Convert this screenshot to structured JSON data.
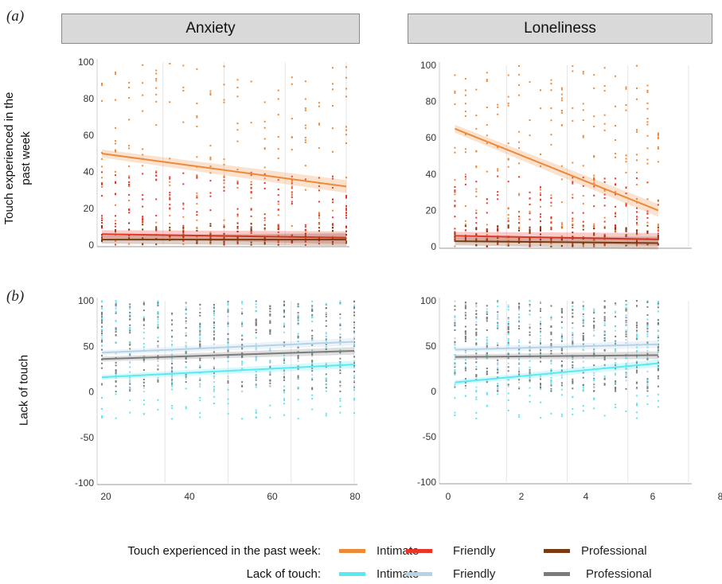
{
  "panel_labels": {
    "a": "(a)",
    "b": "(b)"
  },
  "headers": {
    "left": "Anxiety",
    "right": "Loneliness"
  },
  "y_labels": {
    "row_a_line1": "Touch experienced in the",
    "row_a_line2": "past week",
    "row_b": "Lack of touch"
  },
  "legend": {
    "row1_title": "Touch experienced in the past week:",
    "row2_title": "Lack of touch:",
    "row1_items": [
      {
        "label": "Intimate",
        "color": "#ed8a3a"
      },
      {
        "label": "Friendly",
        "color": "#e8352a"
      },
      {
        "label": "Professional",
        "color": "#7a3a12"
      }
    ],
    "row2_items": [
      {
        "label": "Intimate",
        "color": "#5ce8f2"
      },
      {
        "label": "Friendly",
        "color": "#b5d3e6"
      },
      {
        "label": "Professional",
        "color": "#7b7b7b"
      }
    ]
  },
  "chart_data": [
    {
      "type": "scatter",
      "panel": "(a) Anxiety",
      "xlim": [
        20,
        80
      ],
      "ylim": [
        0,
        100
      ],
      "yticks": [
        0,
        20,
        40,
        60,
        80,
        100
      ],
      "x_tick_labels": [],
      "series": [
        {
          "name": "Intimate",
          "color": "#ed8a3a",
          "fit": {
            "x": [
              20,
              80
            ],
            "y": [
              50,
              32
            ]
          }
        },
        {
          "name": "Friendly",
          "color": "#e8352a",
          "fit": {
            "x": [
              20,
              80
            ],
            "y": [
              6,
              4
            ]
          }
        },
        {
          "name": "Professional",
          "color": "#7a3a12",
          "fit": {
            "x": [
              20,
              80
            ],
            "y": [
              3,
              3
            ]
          }
        }
      ]
    },
    {
      "type": "scatter",
      "panel": "(a) Loneliness",
      "xlim": [
        0,
        8
      ],
      "ylim": [
        0,
        100
      ],
      "yticks": [
        0,
        20,
        40,
        60,
        80,
        100
      ],
      "x_tick_labels": [],
      "series": [
        {
          "name": "Intimate",
          "color": "#ed8a3a",
          "fit": {
            "x": [
              0.3,
              7
            ],
            "y": [
              65,
              20
            ]
          }
        },
        {
          "name": "Friendly",
          "color": "#e8352a",
          "fit": {
            "x": [
              0.3,
              7
            ],
            "y": [
              6,
              4
            ]
          }
        },
        {
          "name": "Professional",
          "color": "#7a3a12",
          "fit": {
            "x": [
              0.3,
              7
            ],
            "y": [
              3,
              2
            ]
          }
        }
      ]
    },
    {
      "type": "scatter",
      "panel": "(b) Anxiety",
      "xlim": [
        20,
        80
      ],
      "ylim": [
        -100,
        100
      ],
      "yticks": [
        -100,
        -50,
        0,
        50,
        100
      ],
      "xticks": [
        20,
        40,
        60,
        80
      ],
      "x_tick_labels": [
        "20",
        "40",
        "60",
        "80"
      ],
      "series": [
        {
          "name": "Intimate",
          "color": "#5ce8f2",
          "fit": {
            "x": [
              20,
              80
            ],
            "y": [
              16,
              30
            ]
          }
        },
        {
          "name": "Friendly",
          "color": "#b5d3e6",
          "fit": {
            "x": [
              20,
              80
            ],
            "y": [
              43,
              55
            ]
          }
        },
        {
          "name": "Professional",
          "color": "#7b7b7b",
          "fit": {
            "x": [
              20,
              80
            ],
            "y": [
              36,
              45
            ]
          }
        }
      ]
    },
    {
      "type": "scatter",
      "panel": "(b) Loneliness",
      "xlim": [
        0,
        8
      ],
      "ylim": [
        -100,
        100
      ],
      "yticks": [
        -100,
        -50,
        0,
        50,
        100
      ],
      "xticks": [
        0,
        2,
        4,
        6,
        8
      ],
      "x_tick_labels": [
        "0",
        "2",
        "4",
        "6",
        "8"
      ],
      "series": [
        {
          "name": "Intimate",
          "color": "#5ce8f2",
          "fit": {
            "x": [
              0.3,
              7
            ],
            "y": [
              10,
              31
            ]
          }
        },
        {
          "name": "Friendly",
          "color": "#b5d3e6",
          "fit": {
            "x": [
              0.3,
              7
            ],
            "y": [
              46,
              52
            ]
          }
        },
        {
          "name": "Professional",
          "color": "#7b7b7b",
          "fit": {
            "x": [
              0.3,
              7
            ],
            "y": [
              38,
              40
            ]
          }
        }
      ]
    }
  ]
}
